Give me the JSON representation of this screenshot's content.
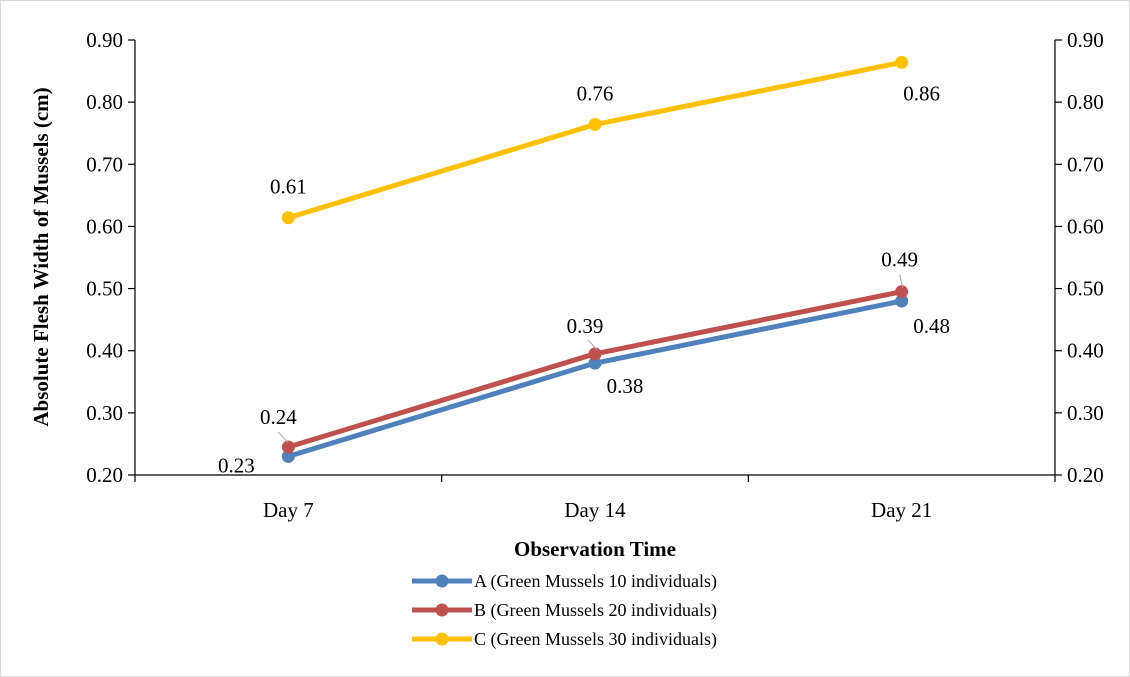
{
  "chart_data": {
    "type": "line",
    "categories": [
      "Day 7",
      "Day 14",
      "Day 21"
    ],
    "xlabel": "Observation Time",
    "ylabel": "Absolute Flesh Width of Mussels (cm)",
    "ylim": [
      0.2,
      0.9
    ],
    "y_ticks": [
      "0.20",
      "0.30",
      "0.40",
      "0.50",
      "0.60",
      "0.70",
      "0.80",
      "0.90"
    ],
    "secondary_y_axis": true,
    "grid": false,
    "legend_position": "bottom",
    "series": [
      {
        "name": "A (Green Mussels 10 individuals)",
        "values": [
          0.23,
          0.38,
          0.48
        ],
        "labels": [
          "0.23",
          "0.38",
          "0.48"
        ],
        "color": "#4f81bd"
      },
      {
        "name": "B (Green Mussels 20 individuals)",
        "values": [
          0.245,
          0.395,
          0.495
        ],
        "labels": [
          "0.24",
          "0.39",
          "0.49"
        ],
        "color": "#c0504d"
      },
      {
        "name": "C (Green Mussels 30 individuals)",
        "values": [
          0.614,
          0.764,
          0.864
        ],
        "labels": [
          "0.61",
          "0.76",
          "0.86"
        ],
        "color": "#ffc000"
      }
    ]
  }
}
